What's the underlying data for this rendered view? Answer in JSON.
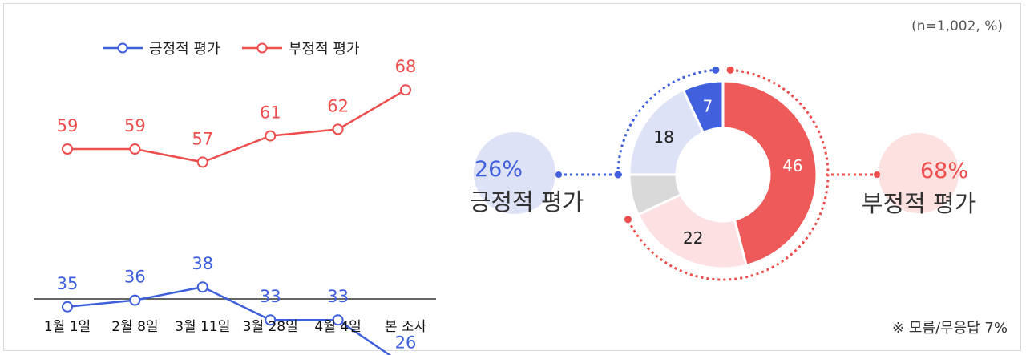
{
  "sample_note": "(n=1,002, %)",
  "footnote": "※ 모름/무응답 7%",
  "colors": {
    "positive": "#3f5fdc",
    "negative": "#ee4d4d",
    "neutral": "#d3d3d3",
    "positive_light": "#dce2f7",
    "negative_light": "#fde0e0"
  },
  "chart_data": [
    {
      "type": "line",
      "categories": [
        "1월 1일",
        "2월 8일",
        "3월 11일",
        "3월 28일",
        "4월 4일",
        "본 조사"
      ],
      "series": [
        {
          "name": "긍정적 평가",
          "color": "#3f5fdc",
          "values": [
            35,
            36,
            38,
            33,
            33,
            26
          ]
        },
        {
          "name": "부정적 평가",
          "color": "#ee4d4d",
          "values": [
            59,
            59,
            57,
            61,
            62,
            68
          ]
        }
      ],
      "legend": "top-left",
      "grid": false
    },
    {
      "type": "pie",
      "style": "donut",
      "slices": [
        {
          "label": "46",
          "value": 46,
          "color": "#ee5a5a",
          "group": "부정적 평가"
        },
        {
          "label": "22",
          "value": 22,
          "color": "#fde0e2",
          "group": "부정적 평가"
        },
        {
          "label": "",
          "value": 7,
          "color": "#d9d9d9",
          "group": "모름/무응답"
        },
        {
          "label": "18",
          "value": 18,
          "color": "#dde2f6",
          "group": "긍정적 평가"
        },
        {
          "label": "7",
          "value": 7,
          "color": "#4060dd",
          "group": "긍정적 평가"
        }
      ],
      "callouts": {
        "positive": {
          "percent": "26%",
          "label": "긍정적 평가"
        },
        "negative": {
          "percent": "68%",
          "label": "부정적 평가"
        }
      }
    }
  ]
}
